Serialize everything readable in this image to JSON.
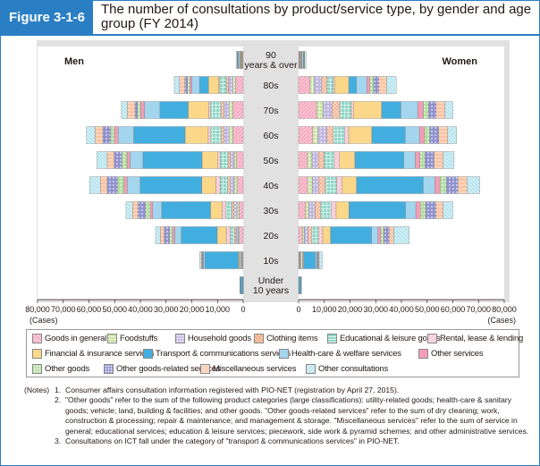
{
  "figure": {
    "label": "Figure 3-1-6",
    "title": "The number of consultations by product/service type, by gender and age group (FY 2014)"
  },
  "colors": {
    "header_blue": "#2a7fc4",
    "chart_bg": "#e1e1e1"
  },
  "chart_data": {
    "type": "bar",
    "orientation": "horizontal-stacked-population-pyramid",
    "title": "The number of consultations by product/service type, by gender and age group (FY 2014)",
    "left_panel_label": "Men",
    "right_panel_label": "Women",
    "unit_label": "(Cases)",
    "xlim": [
      0,
      80000
    ],
    "x_ticks_left": [
      "80,000",
      "70,000",
      "60,000",
      "50,000",
      "40,000",
      "30,000",
      "20,000",
      "10,000",
      "0"
    ],
    "x_ticks_right": [
      "0",
      "10,000",
      "20,000",
      "30,000",
      "40,000",
      "50,000",
      "60,000",
      "70,000",
      "80,000"
    ],
    "x_tick_values": [
      80000,
      70000,
      60000,
      50000,
      40000,
      30000,
      20000,
      10000,
      0
    ],
    "x_tick_values_right": [
      0,
      10000,
      20000,
      30000,
      40000,
      50000,
      60000,
      70000,
      80000
    ],
    "age_groups": [
      "90 years & over",
      "80s",
      "70s",
      "60s",
      "50s",
      "40s",
      "30s",
      "20s",
      "10s",
      "Under 10 years"
    ],
    "categories": [
      {
        "name": "Goods in general",
        "color": "#f6a6bd",
        "pattern": "diag"
      },
      {
        "name": "Foodstuffs",
        "color": "#c7e49e",
        "pattern": "grid"
      },
      {
        "name": "Household goods",
        "color": "#c1b8df",
        "pattern": "dots"
      },
      {
        "name": "Clothing items",
        "color": "#f5a77f",
        "pattern": "cross"
      },
      {
        "name": "Educational & leisure goods",
        "color": "#8fd6c6",
        "pattern": "grid"
      },
      {
        "name": "Rental, lease & lending",
        "color": "#f8c4cf",
        "pattern": "diag2"
      },
      {
        "name": "Financial & insurance services",
        "color": "#fbd78a",
        "pattern": "none"
      },
      {
        "name": "Transport & communications services",
        "color": "#42aee0",
        "pattern": "none"
      },
      {
        "name": "Health-care & welfare services",
        "color": "#a3d5ee",
        "pattern": "none"
      },
      {
        "name": "Other services",
        "color": "#f29db7",
        "pattern": "none"
      },
      {
        "name": "Other goods",
        "color": "#b3dea0",
        "pattern": "dots"
      },
      {
        "name": "Other goods-related services",
        "color": "#8f92cf",
        "pattern": "dots"
      },
      {
        "name": "Miscellaneous services",
        "color": "#f9c3a1",
        "pattern": "hatch"
      },
      {
        "name": "Other consultations",
        "color": "#b6e4ef",
        "pattern": "diag2"
      }
    ],
    "series_men": [
      {
        "age": "90 years & over",
        "values": [
          300,
          150,
          150,
          50,
          100,
          50,
          300,
          200,
          500,
          200,
          100,
          100,
          150,
          400
        ]
      },
      {
        "age": "80s",
        "values": [
          3000,
          1000,
          1700,
          900,
          2500,
          400,
          4000,
          3500,
          3000,
          800,
          900,
          1000,
          2100,
          2000
        ]
      },
      {
        "age": "70s",
        "values": [
          4000,
          1500,
          2000,
          1200,
          4000,
          700,
          8000,
          11000,
          6000,
          1500,
          1200,
          1000,
          3000,
          2300
        ]
      },
      {
        "age": "60s",
        "values": [
          4000,
          1500,
          2000,
          1100,
          4000,
          1000,
          9000,
          20000,
          6000,
          1500,
          1500,
          3000,
          3000,
          3400
        ]
      },
      {
        "age": "50s",
        "values": [
          2500,
          1000,
          1500,
          900,
          3000,
          1100,
          6000,
          23000,
          5000,
          1200,
          2000,
          3000,
          2700,
          4000
        ]
      },
      {
        "age": "40s",
        "values": [
          2300,
          1200,
          1500,
          1000,
          3000,
          1600,
          5500,
          24000,
          5000,
          1300,
          2500,
          4000,
          2700,
          4100
        ]
      },
      {
        "age": "30s",
        "values": [
          1600,
          800,
          1200,
          900,
          2200,
          1500,
          4500,
          19000,
          3500,
          1000,
          1800,
          3000,
          2000,
          2600
        ]
      },
      {
        "age": "20s",
        "values": [
          1500,
          400,
          900,
          600,
          1600,
          1600,
          3500,
          14000,
          2500,
          900,
          1200,
          2000,
          1500,
          1900
        ]
      },
      {
        "age": "10s",
        "values": [
          300,
          100,
          200,
          200,
          500,
          200,
          400,
          13000,
          500,
          100,
          200,
          300,
          300,
          700
        ]
      },
      {
        "age": "Under 10 years",
        "values": [
          50,
          10,
          20,
          10,
          50,
          10,
          20,
          900,
          50,
          10,
          10,
          20,
          20,
          100
        ]
      }
    ],
    "series_women": [
      {
        "age": "90 years & over",
        "values": [
          300,
          150,
          150,
          50,
          100,
          50,
          300,
          200,
          500,
          200,
          100,
          100,
          150,
          500
        ]
      },
      {
        "age": "80s",
        "values": [
          4500,
          1500,
          3000,
          2000,
          2500,
          500,
          5500,
          3000,
          4000,
          1200,
          1500,
          2000,
          3000,
          3800
        ]
      },
      {
        "age": "70s",
        "values": [
          7000,
          2500,
          3500,
          3000,
          4500,
          800,
          11000,
          7500,
          6500,
          2200,
          2000,
          3000,
          3500,
          3000
        ]
      },
      {
        "age": "60s",
        "values": [
          5500,
          2000,
          3500,
          2500,
          4500,
          1500,
          9000,
          13000,
          5500,
          2000,
          2000,
          3500,
          3500,
          3500
        ]
      },
      {
        "age": "50s",
        "values": [
          3500,
          1700,
          2500,
          2200,
          4000,
          2000,
          6000,
          19000,
          4500,
          1800,
          2000,
          3500,
          3500,
          4300
        ]
      },
      {
        "age": "40s",
        "values": [
          3500,
          1800,
          2500,
          2500,
          4500,
          2200,
          5500,
          26000,
          4500,
          2000,
          2500,
          4500,
          3500,
          5000
        ]
      },
      {
        "age": "30s",
        "values": [
          2700,
          1200,
          2500,
          2200,
          4000,
          2000,
          5000,
          22000,
          4000,
          1800,
          2000,
          4000,
          2800,
          3800
        ]
      },
      {
        "age": "20s",
        "values": [
          1500,
          700,
          1500,
          1500,
          2500,
          1700,
          3000,
          16000,
          2500,
          1100,
          1200,
          2000,
          1800,
          6000
        ]
      },
      {
        "age": "10s",
        "values": [
          300,
          150,
          200,
          300,
          600,
          200,
          300,
          4500,
          500,
          150,
          200,
          300,
          300,
          1200
        ]
      },
      {
        "age": "Under 10 years",
        "values": [
          50,
          10,
          20,
          10,
          50,
          10,
          20,
          700,
          50,
          10,
          10,
          20,
          20,
          100
        ]
      }
    ]
  },
  "notes": [
    {
      "prefix": "(Notes)",
      "num": "1.",
      "text": "Consumer affairs consultation information registered with PIO-NET (registration by April 27, 2015)."
    },
    {
      "prefix": "",
      "num": "2.",
      "text": "\"Other goods\" refer to the sum of the following product categories (large classifications): utility-related goods; health-care & sanitary goods; vehicle; land, building & facilities; and other goods. \"Other goods-related services\" refer to the sum of dry cleaning; work, construction & processing; repair & maintenance; and management & storage. \"Miscellaneous services\" refer to the sum of service in general; educational services; education & leisure services; piecework, side work & pyramid schemes; and other administrative services."
    },
    {
      "prefix": "",
      "num": "3.",
      "text": "Consultations on ICT fall under the category of \"transport & communications services\" in PIO-NET."
    }
  ]
}
